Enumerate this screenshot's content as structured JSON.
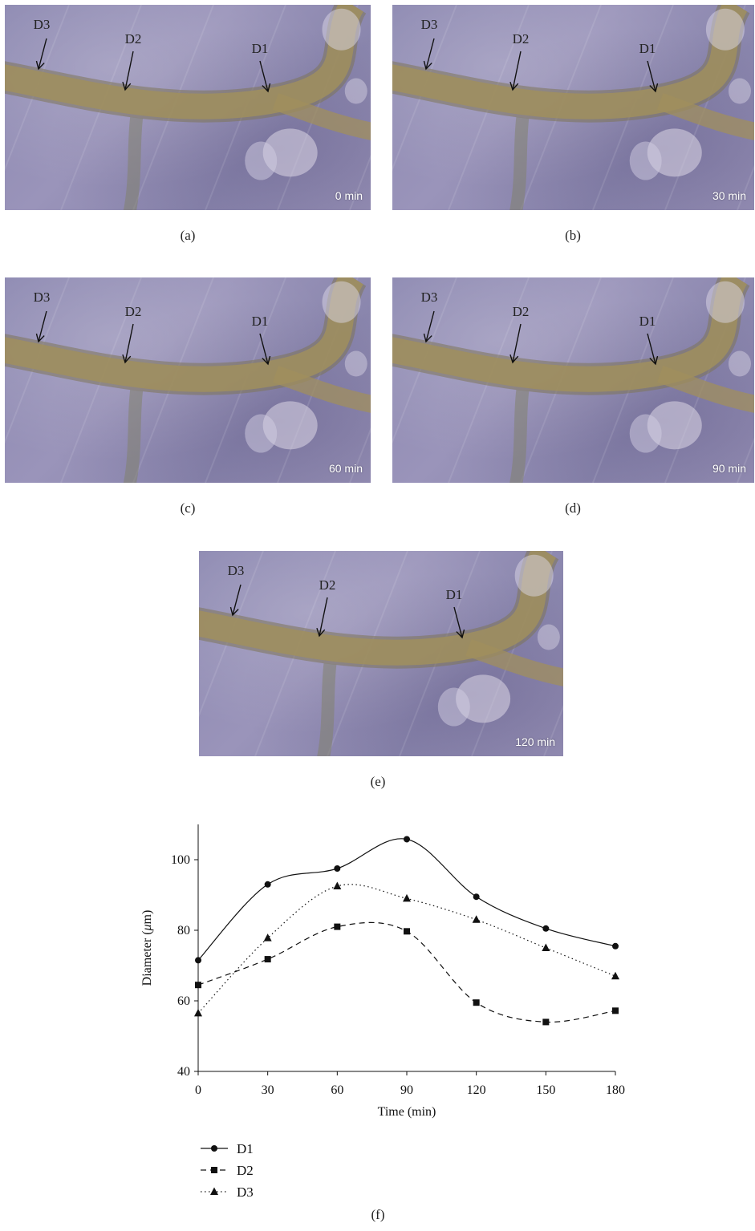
{
  "panels": [
    {
      "time": "0 min",
      "caption": "(a)",
      "labels": [
        "D3",
        "D2",
        "D1"
      ]
    },
    {
      "time": "30 min",
      "caption": "(b)",
      "labels": [
        "D3",
        "D2",
        "D1"
      ]
    },
    {
      "time": "60 min",
      "caption": "(c)",
      "labels": [
        "D3",
        "D2",
        "D1"
      ]
    },
    {
      "time": "90 min",
      "caption": "(d)",
      "labels": [
        "D3",
        "D2",
        "D1"
      ]
    },
    {
      "time": "120 min",
      "caption": "(e)",
      "labels": [
        "D3",
        "D2",
        "D1"
      ]
    }
  ],
  "chart_caption": "(f)",
  "colors": {
    "vessel": "#a08f5e",
    "vessel_edge": "#7d7458",
    "tissue": "#8f8ab3",
    "line": "#111111"
  },
  "chart_data": {
    "type": "line",
    "xlabel": "Time (min)",
    "ylabel_prefix": "Diameter (",
    "ylabel_mu": "μ",
    "ylabel_suffix": "m)",
    "x": [
      0,
      30,
      60,
      90,
      120,
      150,
      180
    ],
    "xticks": [
      0,
      30,
      60,
      90,
      120,
      150,
      180
    ],
    "yticks": [
      40,
      60,
      80,
      100
    ],
    "xlim": [
      0,
      180
    ],
    "ylim": [
      40,
      110
    ],
    "grid": false,
    "legend_position": "bottom-left below plot",
    "series": [
      {
        "name": "D1",
        "marker": "circle",
        "style": "solid",
        "values": [
          71.5,
          93,
          97.5,
          105.8,
          89.5,
          80.5,
          75.5
        ]
      },
      {
        "name": "D2",
        "marker": "square",
        "style": "dashed",
        "values": [
          64.5,
          71.8,
          81,
          79.7,
          59.5,
          54,
          57.2
        ]
      },
      {
        "name": "D3",
        "marker": "triangle",
        "style": "dotted",
        "values": [
          56.5,
          77.8,
          92.5,
          89,
          83,
          75,
          67
        ]
      }
    ]
  }
}
